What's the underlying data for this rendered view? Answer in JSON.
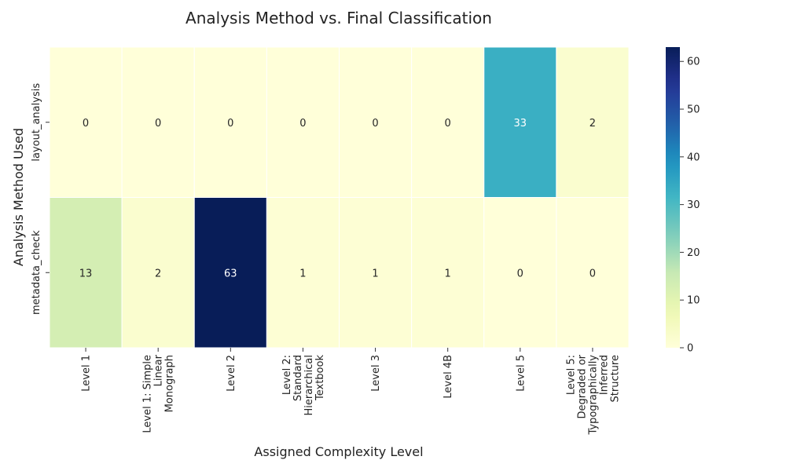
{
  "chart_data": {
    "type": "heatmap",
    "title": "Analysis Method vs. Final Classification",
    "xlabel": "Assigned Complexity Level",
    "ylabel": "Analysis Method Used",
    "rows": [
      "layout_analysis",
      "metadata_check"
    ],
    "columns": [
      "Level 1",
      "Level 1: Simple Linear Monograph",
      "Level 2",
      "Level 2: Standard Hierarchical Textbook",
      "Level 3",
      "Level 4B",
      "Level 5",
      "Level 5: Degraded or Typographically Inferred Structure"
    ],
    "column_label_lines": [
      [
        "Level 1"
      ],
      [
        "Level 1: Simple",
        "Linear",
        "Monograph"
      ],
      [
        "Level 2"
      ],
      [
        "Level 2:",
        "Standard",
        "Hierarchical",
        "Textbook"
      ],
      [
        "Level 3"
      ],
      [
        "Level 4B"
      ],
      [
        "Level 5"
      ],
      [
        "Level 5:",
        "Degraded or",
        "Typographically",
        "Inferred",
        "Structure"
      ]
    ],
    "values": [
      [
        0,
        0,
        0,
        0,
        0,
        0,
        33,
        2
      ],
      [
        13,
        2,
        63,
        1,
        1,
        1,
        0,
        0
      ]
    ],
    "colorbar": {
      "min": 0,
      "max": 63,
      "ticks": [
        0,
        10,
        20,
        30,
        40,
        50,
        60
      ],
      "colormap": "YlGnBu"
    },
    "annotations": true,
    "grid": false
  }
}
